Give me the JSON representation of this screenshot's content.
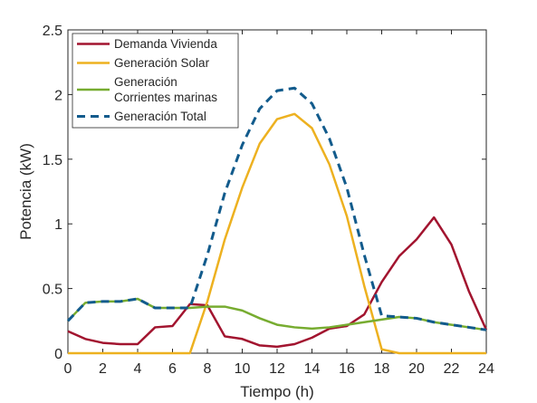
{
  "chart_data": {
    "type": "line",
    "title": "",
    "xlabel": "Tiempo (h)",
    "ylabel": "Potencia (kW)",
    "xlim": [
      0,
      24
    ],
    "ylim": [
      0,
      2.5
    ],
    "x_ticks": [
      0,
      2,
      4,
      6,
      8,
      10,
      12,
      14,
      16,
      18,
      20,
      22,
      24
    ],
    "y_ticks": [
      0,
      0.5,
      1,
      1.5,
      2,
      2.5
    ],
    "y_tick_labels": [
      "0",
      "0.5",
      "1",
      "1.5",
      "2",
      "2.5"
    ],
    "grid": false,
    "legend_position": "top-left",
    "x": [
      0,
      1,
      2,
      3,
      4,
      5,
      6,
      7,
      8,
      9,
      10,
      11,
      12,
      13,
      14,
      15,
      16,
      17,
      18,
      19,
      20,
      21,
      22,
      23,
      24
    ],
    "series": [
      {
        "name": "Demanda Vivienda",
        "legend_lines": [
          "Demanda Vivienda"
        ],
        "color": "#a2142f",
        "dash": "solid",
        "values": [
          0.17,
          0.11,
          0.08,
          0.07,
          0.07,
          0.2,
          0.21,
          0.38,
          0.37,
          0.13,
          0.11,
          0.06,
          0.05,
          0.07,
          0.12,
          0.19,
          0.21,
          0.3,
          0.55,
          0.75,
          0.88,
          1.05,
          0.84,
          0.48,
          0.18
        ]
      },
      {
        "name": "Generación Solar",
        "legend_lines": [
          "Generación Solar"
        ],
        "color": "#edb120",
        "dash": "solid",
        "values": [
          0,
          0,
          0,
          0,
          0,
          0,
          0,
          0,
          0.4,
          0.88,
          1.28,
          1.62,
          1.81,
          1.85,
          1.74,
          1.46,
          1.06,
          0.52,
          0.03,
          0,
          0,
          0,
          0,
          0,
          0
        ]
      },
      {
        "name": "Generación Corrientes marinas",
        "legend_lines": [
          "Generación",
          "Corrientes marinas"
        ],
        "color": "#77ac30",
        "dash": "solid",
        "values": [
          0.25,
          0.39,
          0.4,
          0.4,
          0.42,
          0.35,
          0.35,
          0.35,
          0.36,
          0.36,
          0.33,
          0.27,
          0.22,
          0.2,
          0.19,
          0.2,
          0.22,
          0.24,
          0.26,
          0.28,
          0.27,
          0.24,
          0.22,
          0.2,
          0.18
        ]
      },
      {
        "name": "Generación Total",
        "legend_lines": [
          "Generación Total"
        ],
        "color": "#125b8c",
        "dash": "dashed",
        "values": [
          0.25,
          0.39,
          0.4,
          0.4,
          0.42,
          0.35,
          0.35,
          0.35,
          0.76,
          1.24,
          1.61,
          1.89,
          2.03,
          2.05,
          1.93,
          1.66,
          1.28,
          0.76,
          0.29,
          0.28,
          0.27,
          0.24,
          0.22,
          0.2,
          0.18
        ]
      }
    ]
  }
}
